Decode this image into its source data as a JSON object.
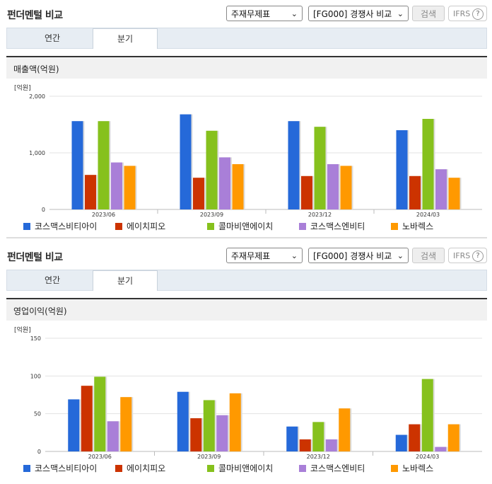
{
  "header": {
    "title": "펀더멘털 비교",
    "select_stock": "주재무제표",
    "select_group": "[FG000] 경쟁사 비교",
    "search_label": "검색",
    "ifrs_label": "IFRS",
    "help_glyph": "?",
    "chevron": "⌄"
  },
  "tabs": [
    "연간",
    "분기"
  ],
  "active_tab": 1,
  "legend_colors": [
    "#2569d9",
    "#cc3300",
    "#86c11d",
    "#a97fd8",
    "#ff9900"
  ],
  "sections": [
    {
      "label": "매출액(억원)",
      "unit": "[억원]",
      "chart_data": {
        "type": "bar",
        "categories": [
          "2023/06",
          "2023/09",
          "2023/12",
          "2024/03"
        ],
        "ylim": [
          0,
          2000
        ],
        "yticks": [
          "0",
          "1,000",
          "2,000"
        ],
        "ytick_values": [
          0,
          1000,
          2000
        ],
        "grid": true,
        "legend_position": "bottom",
        "series": [
          {
            "name": "코스맥스비티아이",
            "values": [
              1560,
              1680,
              1560,
              1400
            ]
          },
          {
            "name": "에이치피오",
            "values": [
              610,
              560,
              590,
              590
            ]
          },
          {
            "name": "콜마비앤에이치",
            "values": [
              1560,
              1390,
              1460,
              1600
            ]
          },
          {
            "name": "코스맥스엔비티",
            "values": [
              830,
              920,
              800,
              710
            ]
          },
          {
            "name": "노바렉스",
            "values": [
              770,
              800,
              770,
              560
            ]
          }
        ]
      }
    },
    {
      "label": "영업이익(억원)",
      "unit": "[억원]",
      "chart_data": {
        "type": "bar",
        "categories": [
          "2023/06",
          "2023/09",
          "2023/12",
          "2024/03"
        ],
        "ylim": [
          0,
          150
        ],
        "yticks": [
          "0",
          "50",
          "100",
          "150"
        ],
        "ytick_values": [
          0,
          50,
          100,
          150
        ],
        "grid": true,
        "legend_position": "bottom",
        "series": [
          {
            "name": "코스맥스비티아이",
            "values": [
              69,
              79,
              33,
              22
            ]
          },
          {
            "name": "에이치피오",
            "values": [
              87,
              44,
              16,
              36
            ]
          },
          {
            "name": "콜마비앤에이치",
            "values": [
              99,
              68,
              39,
              96
            ]
          },
          {
            "name": "코스맥스엔비티",
            "values": [
              40,
              48,
              16,
              6
            ]
          },
          {
            "name": "노바렉스",
            "values": [
              72,
              77,
              57,
              36
            ]
          }
        ]
      }
    }
  ]
}
